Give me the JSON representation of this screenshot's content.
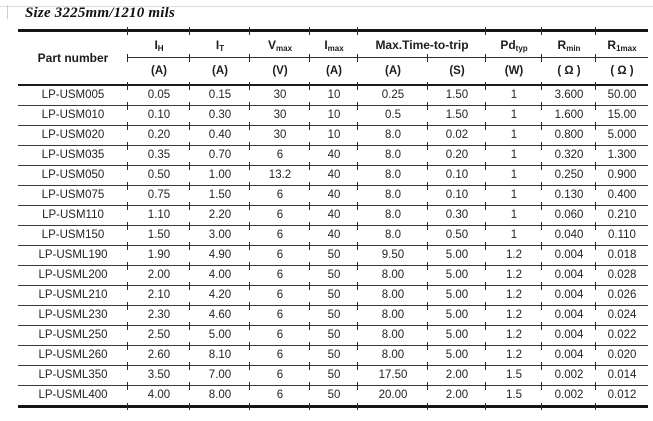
{
  "page": {
    "title": "Size 3225mm/1210 mils"
  },
  "colors": {
    "rule_heavy": "#151515",
    "rule_light": "#3a3a3a",
    "text": "#222222",
    "background": "#ffffff"
  },
  "table": {
    "header": {
      "part_number": "Part number",
      "trip": "Max.Time-to-trip",
      "cols": {
        "ih": {
          "main": "I",
          "sub": "H",
          "unit": "(A)"
        },
        "it": {
          "main": "I",
          "sub": "T",
          "unit": "(A)"
        },
        "vmax": {
          "main": "V",
          "sub": "max",
          "unit": "(V)"
        },
        "imax": {
          "main": "I",
          "sub": "max",
          "unit": "(A)"
        },
        "trip_a": {
          "unit": "(A)"
        },
        "trip_s": {
          "unit": "(S)"
        },
        "pdtyp": {
          "main": "Pd",
          "sub": "typ",
          "unit": "(W)"
        },
        "rmin": {
          "main": "R",
          "sub": "min",
          "unit": "( Ω )"
        },
        "r1max": {
          "main": "R",
          "sub": "1max",
          "unit": "( Ω )"
        }
      }
    },
    "rows": [
      [
        "LP-USM005",
        "0.05",
        "0.15",
        "30",
        "10",
        "0.25",
        "1.50",
        "1",
        "3.600",
        "50.00"
      ],
      [
        "LP-USM010",
        "0.10",
        "0.30",
        "30",
        "10",
        "0.5",
        "1.50",
        "1",
        "1.600",
        "15.00"
      ],
      [
        "LP-USM020",
        "0.20",
        "0.40",
        "30",
        "10",
        "8.0",
        "0.02",
        "1",
        "0.800",
        "5.000"
      ],
      [
        "LP-USM035",
        "0.35",
        "0.70",
        "6",
        "40",
        "8.0",
        "0.20",
        "1",
        "0.320",
        "1.300"
      ],
      [
        "LP-USM050",
        "0.50",
        "1.00",
        "13.2",
        "40",
        "8.0",
        "0.10",
        "1",
        "0.250",
        "0.900"
      ],
      [
        "LP-USM075",
        "0.75",
        "1.50",
        "6",
        "40",
        "8.0",
        "0.10",
        "1",
        "0.130",
        "0.400"
      ],
      [
        "LP-USM110",
        "1.10",
        "2.20",
        "6",
        "40",
        "8.0",
        "0.30",
        "1",
        "0.060",
        "0.210"
      ],
      [
        "LP-USM150",
        "1.50",
        "3.00",
        "6",
        "40",
        "8.0",
        "0.50",
        "1",
        "0.040",
        "0.110"
      ],
      [
        "LP-USML190",
        "1.90",
        "4.90",
        "6",
        "50",
        "9.50",
        "5.00",
        "1.2",
        "0.004",
        "0.018"
      ],
      [
        "LP-USML200",
        "2.00",
        "4.00",
        "6",
        "50",
        "8.00",
        "5.00",
        "1.2",
        "0.004",
        "0.028"
      ],
      [
        "LP-USML210",
        "2.10",
        "4.20",
        "6",
        "50",
        "8.00",
        "5.00",
        "1.2",
        "0.004",
        "0.026"
      ],
      [
        "LP-USML230",
        "2.30",
        "4.60",
        "6",
        "50",
        "8.00",
        "5.00",
        "1.2",
        "0.004",
        "0.024"
      ],
      [
        "LP-USML250",
        "2.50",
        "5.00",
        "6",
        "50",
        "8.00",
        "5.00",
        "1.2",
        "0.004",
        "0.022"
      ],
      [
        "LP-USML260",
        "2.60",
        "8.10",
        "6",
        "50",
        "8.00",
        "5.00",
        "1.2",
        "0.004",
        "0.020"
      ],
      [
        "LP-USML350",
        "3.50",
        "7.00",
        "6",
        "50",
        "17.50",
        "2.00",
        "1.5",
        "0.002",
        "0.014"
      ],
      [
        "LP-USML400",
        "4.00",
        "8.00",
        "6",
        "50",
        "20.00",
        "2.00",
        "1.5",
        "0.002",
        "0.012"
      ]
    ]
  }
}
